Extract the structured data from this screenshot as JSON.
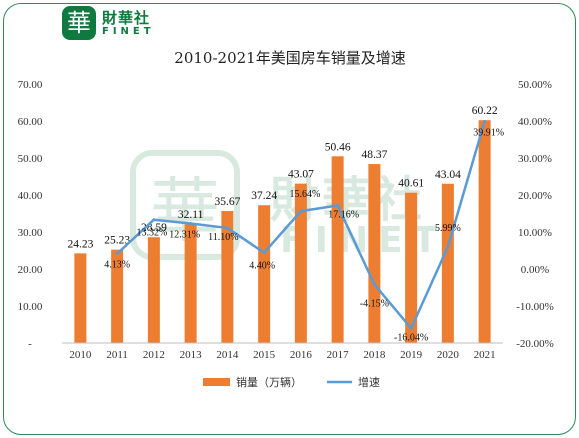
{
  "brand": {
    "mark": "華",
    "name_cn": "財華社",
    "name_en": "FINET"
  },
  "colors": {
    "bar": "#ed7d31",
    "line": "#5b9bd5",
    "frame": "#2e8b57",
    "brand": "#0f7a3f"
  },
  "chart_data": {
    "type": "bar",
    "title": "2010-2021年美国房车销量及增速",
    "categories": [
      "2010",
      "2011",
      "2012",
      "2013",
      "2014",
      "2015",
      "2016",
      "2017",
      "2018",
      "2019",
      "2020",
      "2021"
    ],
    "series": [
      {
        "name": "销量（万辆）",
        "type": "bar",
        "axis": "left",
        "values": [
          24.23,
          25.23,
          28.59,
          32.11,
          35.67,
          37.24,
          43.07,
          50.46,
          48.37,
          40.61,
          43.04,
          60.22
        ],
        "labels": [
          "24.23",
          "25.23",
          "28.59",
          "32.11",
          "35.67",
          "37.24",
          "43.07",
          "50.46",
          "48.37",
          "40.61",
          "43.04",
          "60.22"
        ]
      },
      {
        "name": "增速",
        "type": "line",
        "axis": "right",
        "values": [
          null,
          4.13,
          13.32,
          12.31,
          11.1,
          4.4,
          15.64,
          17.16,
          -4.15,
          -16.04,
          5.99,
          39.91
        ],
        "labels": [
          "",
          "4.13%",
          "13.32%",
          "12.31%",
          "11.10%",
          "4.40%",
          "15.64%",
          "17.16%",
          "-4.15%",
          "-16.04%",
          "5.99%",
          "39.91%"
        ]
      }
    ],
    "y_left": {
      "ylim": [
        0,
        70
      ],
      "ticks": [
        0,
        10,
        20,
        30,
        40,
        50,
        60,
        70
      ],
      "tick_labels": [
        "-",
        "10.00",
        "20.00",
        "30.00",
        "40.00",
        "50.00",
        "60.00",
        "70.00"
      ]
    },
    "y_right": {
      "ylim": [
        -20,
        50
      ],
      "ticks": [
        -20,
        -10,
        0,
        10,
        20,
        30,
        40,
        50
      ],
      "tick_labels": [
        "-20.00%",
        "-10.00%",
        "0.00%",
        "10.00%",
        "20.00%",
        "30.00%",
        "40.00%",
        "50.00%"
      ]
    },
    "grid": false,
    "legend": "bottom"
  }
}
